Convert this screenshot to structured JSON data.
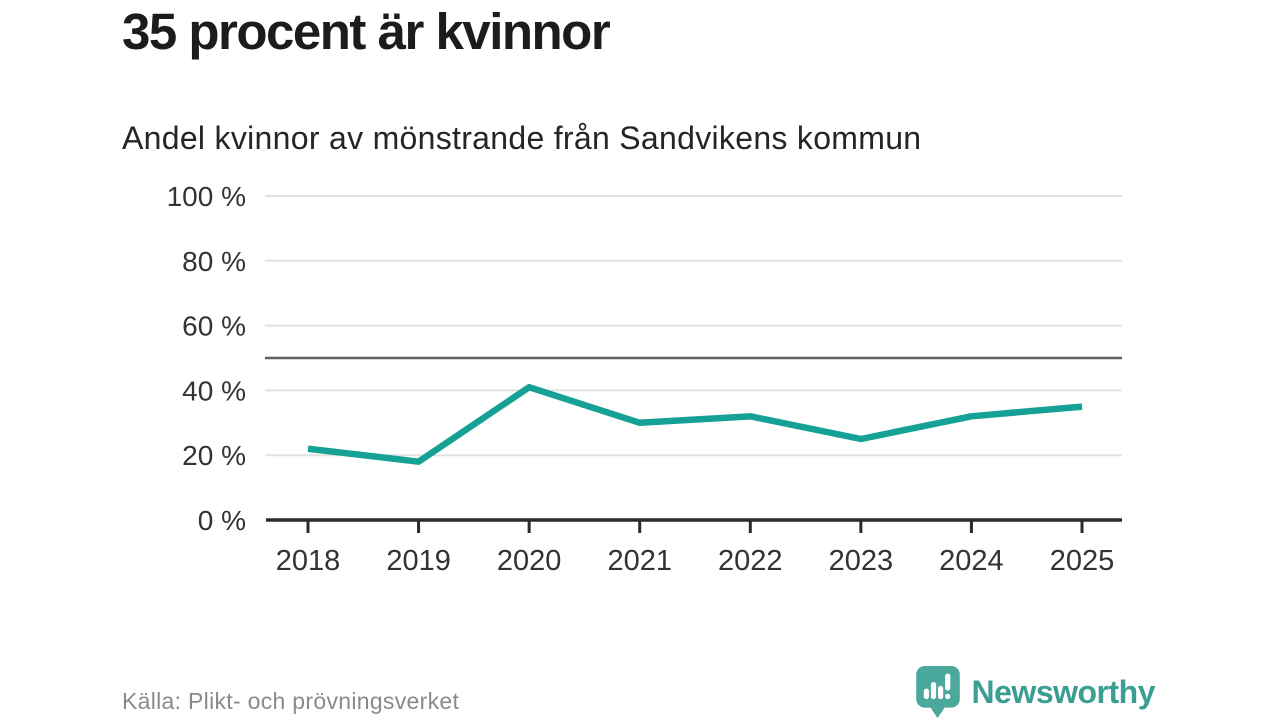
{
  "headline": "35 procent är kvinnor",
  "subtitle": "Andel kvinnor av mönstrande från Sandvikens kommun",
  "source": "Källa: Plikt- och prövningsverket",
  "branding": {
    "name": "Newsworthy",
    "icon": "newsworthy-bubble-bar-chart-icon",
    "icon_color": "#4aa89d",
    "text_color": "#3b9e93"
  },
  "colors": {
    "line": "#16a196",
    "grid": "#e2e2e2",
    "axis": "#2b2b2b",
    "reference": "#5f5f5f",
    "tick_text": "#333333",
    "headline_text": "#1c1c1c",
    "muted_text": "#8a8a8a",
    "background": "#ffffff"
  },
  "chart_data": {
    "type": "line",
    "title": "Andel kvinnor av mönstrande från Sandvikens kommun",
    "x": [
      2018,
      2019,
      2020,
      2021,
      2022,
      2023,
      2024,
      2025
    ],
    "series": [
      {
        "name": "Andel kvinnor",
        "color": "#16a196",
        "values": [
          22,
          18,
          41,
          30,
          32,
          25,
          32,
          35
        ]
      }
    ],
    "xlabel": "",
    "ylabel": "",
    "ylim": [
      0,
      100
    ],
    "yticks": [
      0,
      20,
      40,
      60,
      80,
      100
    ],
    "ytick_suffix": " %",
    "reference_line": 50,
    "grid": true,
    "legend": false
  }
}
